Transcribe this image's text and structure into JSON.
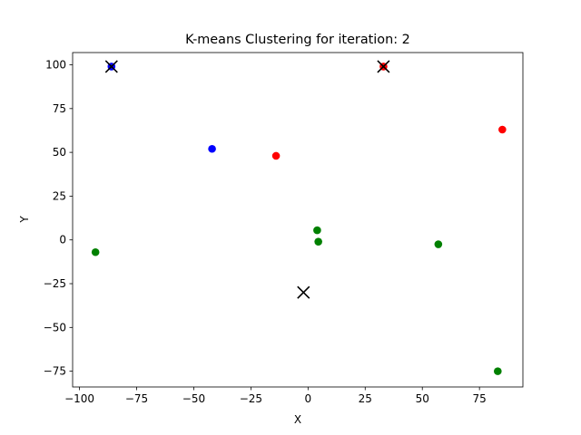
{
  "chart_data": {
    "type": "scatter",
    "title": "K-means Clustering for iteration: 2",
    "xlabel": "X",
    "ylabel": "Y",
    "xlim": [
      -103,
      94
    ],
    "ylim": [
      -84,
      107
    ],
    "xticks": [
      -100,
      -75,
      -50,
      -25,
      0,
      25,
      50,
      75
    ],
    "yticks": [
      -75,
      -50,
      -25,
      0,
      25,
      50,
      75,
      100
    ],
    "grid": false,
    "series": [
      {
        "color": "#0000ff",
        "points": [
          {
            "x": -86,
            "y": 99
          },
          {
            "x": -42,
            "y": 52
          }
        ]
      },
      {
        "color": "#ff0000",
        "points": [
          {
            "x": 33,
            "y": 99
          },
          {
            "x": -14,
            "y": 48
          },
          {
            "x": 85,
            "y": 63
          }
        ]
      },
      {
        "color": "#008000",
        "points": [
          {
            "x": -93,
            "y": -7
          },
          {
            "x": 4,
            "y": 5.5
          },
          {
            "x": 4.5,
            "y": -1
          },
          {
            "x": 57,
            "y": -2.5
          },
          {
            "x": 83,
            "y": -75
          }
        ]
      }
    ],
    "centroids": {
      "color": "#000000",
      "marker": "x",
      "points": [
        {
          "x": -86,
          "y": 99
        },
        {
          "x": 33,
          "y": 99
        },
        {
          "x": -2,
          "y": -30
        }
      ]
    }
  }
}
